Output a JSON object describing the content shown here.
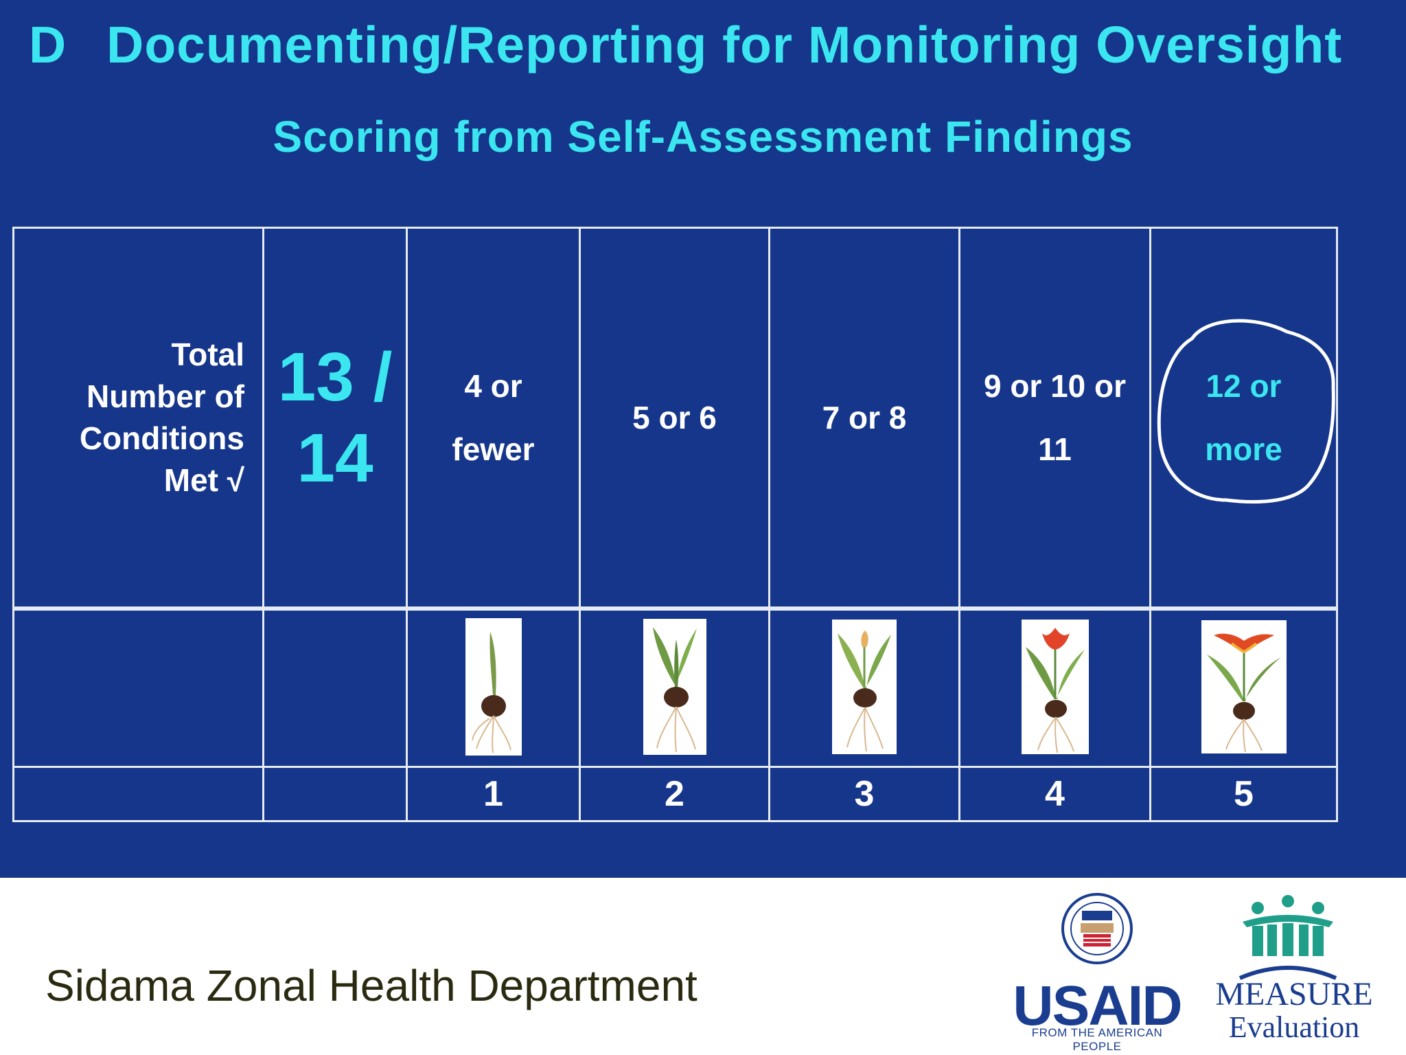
{
  "title": {
    "letter": "D",
    "text": "Documenting/Reporting for Monitoring Oversight"
  },
  "subtitle": "Scoring from Self-Assessment Findings",
  "table": {
    "label_lines": [
      "Total",
      "Number of",
      "Conditions",
      "Met √"
    ],
    "count_lines": [
      "13 /",
      "14"
    ],
    "ranges": [
      {
        "lines": [
          "4 or",
          "fewer"
        ]
      },
      {
        "lines": [
          "5 or 6"
        ]
      },
      {
        "lines": [
          "7 or 8"
        ]
      },
      {
        "lines": [
          "9 or 10 or",
          "11"
        ]
      },
      {
        "lines": [
          "12 or",
          "more"
        ],
        "highlighted": true
      }
    ],
    "scores": [
      "1",
      "2",
      "3",
      "4",
      "5"
    ],
    "plant_stages": [
      "bulb-sprout-icon",
      "bulb-leaves-icon",
      "bulb-bud-icon",
      "tulip-bloom-icon",
      "tulip-full-bloom-icon"
    ]
  },
  "footer": {
    "department": "Sidama Zonal Health Department",
    "usaid": {
      "word": "USAID",
      "tagline": "FROM THE AMERICAN PEOPLE"
    },
    "measure": {
      "word": "MEASURE",
      "sub": "Evaluation"
    }
  },
  "colors": {
    "background": "#15368a",
    "accent": "#3be6f0",
    "text": "#ffffff",
    "highlight_circle": "#ffffff"
  }
}
